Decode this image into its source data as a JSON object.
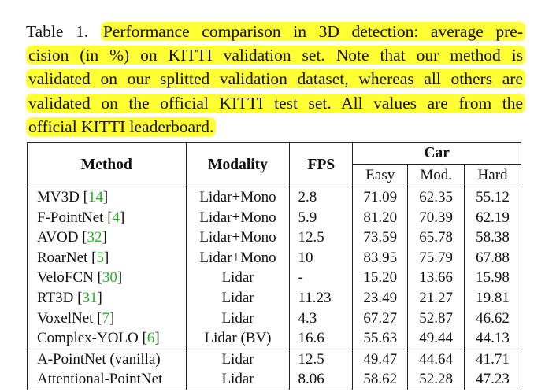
{
  "caption": {
    "label": "Table 1.",
    "lines": [
      "Performance comparison in 3D detection: average pre-",
      "cision (in %) on KITTI validation set. Note that our method is",
      "validated on our splitted validation dataset, whereas all others are",
      "validated on the official KITTI test set. All values are from the",
      "official KITTI leaderboard."
    ]
  },
  "table": {
    "headers": {
      "method": "Method",
      "modality": "Modality",
      "fps": "FPS",
      "car": "Car"
    },
    "subheaders": [
      "Easy",
      "Mod.",
      "Hard"
    ],
    "rows": [
      {
        "method": "MV3D",
        "ref": "14",
        "modality": "Lidar+Mono",
        "fps": "2.8",
        "easy": "71.09",
        "mod": "62.35",
        "hard": "55.12"
      },
      {
        "method": "F-PointNet",
        "ref": "4",
        "modality": "Lidar+Mono",
        "fps": "5.9",
        "easy": "81.20",
        "mod": "70.39",
        "hard": "62.19"
      },
      {
        "method": "AVOD",
        "ref": "32",
        "modality": "Lidar+Mono",
        "fps": "12.5",
        "easy": "73.59",
        "mod": "65.78",
        "hard": "58.38"
      },
      {
        "method": "RoarNet",
        "ref": "5",
        "modality": "Lidar+Mono",
        "fps": "10",
        "easy": "83.95",
        "mod": "75.79",
        "hard": "67.88"
      },
      {
        "method": "VeloFCN",
        "ref": "30",
        "modality": "Lidar",
        "fps": "-",
        "easy": "15.20",
        "mod": "13.66",
        "hard": "15.98"
      },
      {
        "method": "RT3D",
        "ref": "31",
        "modality": "Lidar",
        "fps": "11.23",
        "easy": "23.49",
        "mod": "21.27",
        "hard": "19.81"
      },
      {
        "method": "VoxelNet",
        "ref": "7",
        "modality": "Lidar",
        "fps": "4.3",
        "easy": "67.27",
        "mod": "52.87",
        "hard": "46.62"
      },
      {
        "method": "Complex-YOLO",
        "ref": "6",
        "modality": "Lidar (BV)",
        "fps": "16.6",
        "easy": "55.63",
        "mod": "49.44",
        "hard": "44.13"
      },
      {
        "method": "A-PointNet (vanilla)",
        "ref": "",
        "modality": "Lidar",
        "fps": "12.5",
        "easy": "49.47",
        "mod": "44.64",
        "hard": "41.71"
      },
      {
        "method": "Attentional-PointNet",
        "ref": "",
        "modality": "Lidar",
        "fps": "8.06",
        "easy": "58.62",
        "mod": "52.28",
        "hard": "47.23"
      }
    ]
  },
  "colors": {
    "highlight": "#ffff33",
    "ref_link": "#1fb51f"
  }
}
